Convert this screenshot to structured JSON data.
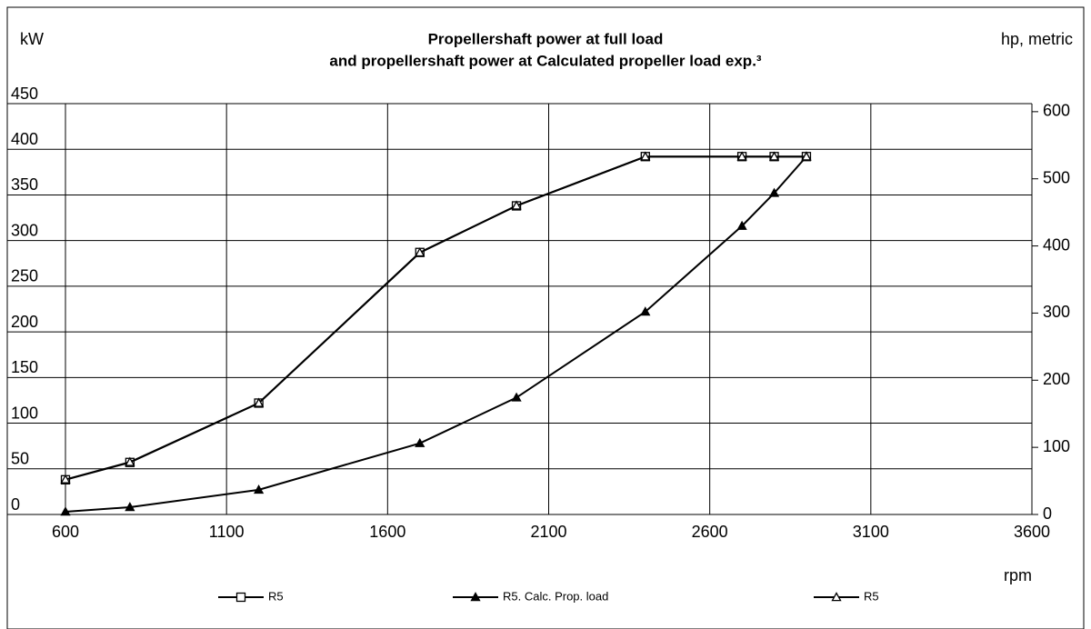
{
  "chart_data": {
    "type": "line",
    "title": [
      "Propellershaft power at full load",
      "and propellershaft power at Calculated propeller load exp.³"
    ],
    "y_label": "kW",
    "y2_label": "hp, metric",
    "x_label": "rpm",
    "x": [
      600,
      800,
      1200,
      1700,
      2000,
      2400,
      2700,
      2800,
      2900
    ],
    "series": [
      {
        "name": "R5",
        "color": "#000000",
        "marker": "square-open",
        "values": [
          38,
          57,
          122,
          287,
          338,
          392,
          392,
          392,
          392
        ]
      },
      {
        "name": "R5. Calc. Prop. load",
        "color": "#000000",
        "marker": "triangle-filled",
        "values": [
          3,
          8,
          27,
          78,
          128,
          222,
          316,
          352,
          392
        ]
      },
      {
        "name": "R5",
        "color": "#000000",
        "marker": "triangle-open",
        "axis": "y2",
        "values": [
          52,
          78,
          166,
          390,
          460,
          533,
          533,
          533,
          533
        ]
      }
    ],
    "xlim": [
      600,
      3600
    ],
    "xticks": [
      600,
      1100,
      1600,
      2100,
      2600,
      3100,
      3600
    ],
    "ylim": [
      0,
      450
    ],
    "yticks": [
      0,
      50,
      100,
      150,
      200,
      250,
      300,
      350,
      400,
      450
    ],
    "y2lim": [
      0,
      612
    ],
    "y2ticks": [
      0,
      100,
      200,
      300,
      400,
      500,
      600
    ],
    "grid": true,
    "legend": "bottom"
  }
}
